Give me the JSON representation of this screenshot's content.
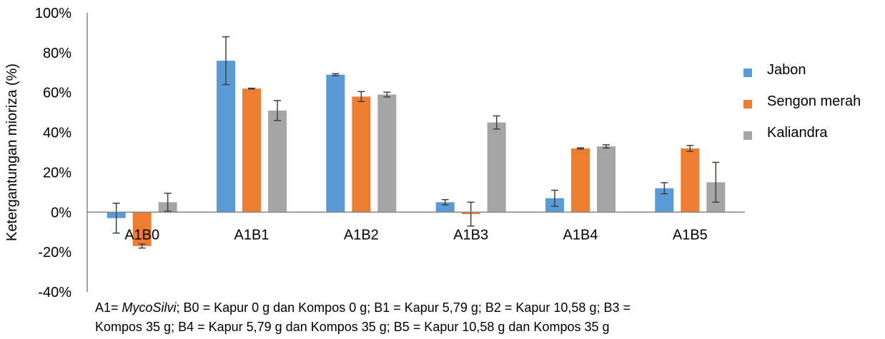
{
  "chart_data": {
    "type": "bar",
    "categories": [
      "A1B0",
      "A1B1",
      "A1B2",
      "A1B3",
      "A1B4",
      "A1B5"
    ],
    "series": [
      {
        "name": "Jabon",
        "color": "#5B9BD5",
        "values": [
          -0.03,
          0.76,
          0.69,
          0.05,
          0.07,
          0.12
        ],
        "errors": [
          0.075,
          0.12,
          0.005,
          0.013,
          0.04,
          0.028
        ]
      },
      {
        "name": "Sengon merah",
        "color": "#ED7D31",
        "values": [
          -0.17,
          0.62,
          0.58,
          -0.01,
          0.32,
          0.32
        ],
        "errors": [
          0.01,
          0.002,
          0.025,
          0.06,
          0.003,
          0.015
        ]
      },
      {
        "name": "Kaliandra",
        "color": "#A5A5A5",
        "values": [
          0.05,
          0.51,
          0.59,
          0.45,
          0.33,
          0.15
        ],
        "errors": [
          0.045,
          0.05,
          0.012,
          0.033,
          0.008,
          0.1
        ]
      }
    ],
    "ylabel": "Ketergantungan mioriza (%)",
    "xlabel": "",
    "ylim": [
      -0.4,
      1.0
    ],
    "yticks": [
      "100%",
      "80%",
      "60%",
      "40%",
      "20%",
      "0%",
      "-20%",
      "-40%"
    ],
    "ytick_values": [
      1.0,
      0.8,
      0.6,
      0.4,
      0.2,
      0.0,
      -0.2,
      -0.4
    ],
    "grid": false,
    "legend_position": "right"
  },
  "caption": {
    "line1_prefix": "A1= ",
    "line1_italic": "MycoSilvi",
    "line1_rest": "; B0 = Kapur 0 g dan Kompos 0 g; B1 = Kapur 5,79 g; B2 = Kapur 10,58 g; B3 =",
    "line2": "Kompos 35 g; B4 = Kapur 5,79 g dan Kompos 35 g; B5 = Kapur 10,58 g dan Kompos 35 g"
  }
}
